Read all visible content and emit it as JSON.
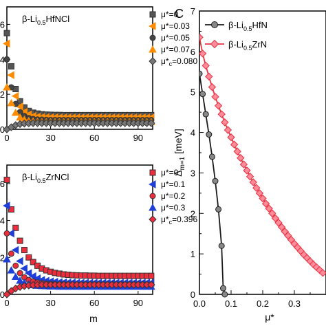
{
  "chart_data": [
    {
      "type": "scatter",
      "panel": "top-left",
      "title": "β-Li0.5HfNCl",
      "xlabel": "",
      "ylabel": "",
      "xlim": [
        0,
        100
      ],
      "ylim": [
        0,
        7
      ],
      "xticks": [
        0,
        30,
        60,
        90
      ],
      "yticks": [
        0,
        2,
        4,
        6
      ],
      "ytick_labels": [
        "0",
        "2",
        "4",
        "6"
      ],
      "series": [
        {
          "name": "μ*=0",
          "marker": "square",
          "color": "#555555",
          "x": [
            0,
            3,
            6,
            9,
            12,
            15,
            18,
            21,
            24,
            27,
            30,
            33,
            36,
            39,
            42,
            45,
            48,
            51,
            54,
            57,
            60,
            63,
            66,
            69,
            72,
            75,
            78,
            81,
            84,
            87,
            90,
            93,
            96,
            99
          ],
          "y": [
            5.5,
            3.6,
            2.3,
            1.6,
            1.25,
            1.05,
            0.95,
            0.9,
            0.86,
            0.84,
            0.83,
            0.82,
            0.82,
            0.81,
            0.81,
            0.81,
            0.81,
            0.81,
            0.81,
            0.81,
            0.81,
            0.81,
            0.81,
            0.81,
            0.81,
            0.81,
            0.81,
            0.81,
            0.81,
            0.81,
            0.81,
            0.81,
            0.81,
            0.81
          ]
        },
        {
          "name": "μ*=0.03",
          "marker": "triangle-left",
          "color": "#ff8c00",
          "x": [
            0,
            3,
            6,
            9,
            12,
            15,
            18,
            21,
            24,
            27,
            30,
            33,
            36,
            39,
            42,
            45,
            48,
            51,
            54,
            57,
            60,
            63,
            66,
            69,
            72,
            75,
            78,
            81,
            84,
            87,
            90,
            93,
            96,
            99
          ],
          "y": [
            4.9,
            3.1,
            1.9,
            1.3,
            1.0,
            0.85,
            0.76,
            0.72,
            0.7,
            0.69,
            0.68,
            0.68,
            0.67,
            0.67,
            0.67,
            0.67,
            0.67,
            0.67,
            0.67,
            0.67,
            0.67,
            0.67,
            0.67,
            0.67,
            0.67,
            0.67,
            0.67,
            0.67,
            0.67,
            0.67,
            0.67,
            0.67,
            0.67,
            0.67
          ]
        },
        {
          "name": "μ*=0.05",
          "marker": "circle",
          "color": "#444444",
          "x": [
            0,
            3,
            6,
            9,
            12,
            15,
            18,
            21,
            24,
            27,
            30,
            33,
            36,
            39,
            42,
            45,
            48,
            51,
            54,
            57,
            60,
            63,
            66,
            69,
            72,
            75,
            78,
            81,
            84,
            87,
            90,
            93,
            96,
            99
          ],
          "y": [
            4.0,
            2.4,
            1.45,
            0.98,
            0.76,
            0.64,
            0.59,
            0.56,
            0.55,
            0.54,
            0.53,
            0.53,
            0.53,
            0.53,
            0.53,
            0.53,
            0.53,
            0.53,
            0.53,
            0.53,
            0.53,
            0.53,
            0.53,
            0.53,
            0.53,
            0.53,
            0.53,
            0.53,
            0.53,
            0.53,
            0.53,
            0.53,
            0.53,
            0.53
          ]
        },
        {
          "name": "μ*=0.07",
          "marker": "triangle-up",
          "color": "#ff8c00",
          "x": [
            0,
            3,
            6,
            9,
            12,
            15,
            18,
            21,
            24,
            27,
            30,
            33,
            36,
            39,
            42,
            45,
            48,
            51,
            54,
            57,
            60,
            63,
            66,
            69,
            72,
            75,
            78,
            81,
            84,
            87,
            90,
            93,
            96,
            99
          ],
          "y": [
            2.4,
            1.5,
            0.95,
            0.68,
            0.55,
            0.48,
            0.45,
            0.43,
            0.42,
            0.42,
            0.42,
            0.42,
            0.42,
            0.42,
            0.42,
            0.42,
            0.42,
            0.42,
            0.42,
            0.42,
            0.42,
            0.42,
            0.42,
            0.42,
            0.42,
            0.42,
            0.42,
            0.42,
            0.42,
            0.42,
            0.42,
            0.42,
            0.42,
            0.42
          ]
        },
        {
          "name": "μ*c=0.080",
          "marker": "diamond",
          "color": "#777777",
          "x": [
            0,
            3,
            6,
            9,
            12,
            15,
            18,
            21,
            24,
            27,
            30,
            33,
            36,
            39,
            42,
            45,
            48,
            51,
            54,
            57,
            60,
            63,
            66,
            69,
            72,
            75,
            78,
            81,
            84,
            87,
            90,
            93,
            96,
            99
          ],
          "y": [
            0.0,
            0.12,
            0.24,
            0.3,
            0.33,
            0.34,
            0.35,
            0.35,
            0.35,
            0.35,
            0.35,
            0.35,
            0.35,
            0.35,
            0.35,
            0.35,
            0.35,
            0.35,
            0.35,
            0.35,
            0.35,
            0.35,
            0.35,
            0.35,
            0.35,
            0.35,
            0.35,
            0.35,
            0.35,
            0.35,
            0.35,
            0.35,
            0.35,
            0.35
          ]
        }
      ],
      "legend": "right"
    },
    {
      "type": "scatter",
      "panel": "bottom-left",
      "title": "β-Li0.5ZrNCl",
      "xlabel": "m",
      "ylabel": "",
      "xlim": [
        0,
        100
      ],
      "ylim": [
        0,
        7
      ],
      "xticks": [
        0,
        30,
        60,
        90
      ],
      "yticks": [
        0,
        2,
        4,
        6
      ],
      "ytick_labels": [
        "0",
        "2",
        "4",
        "6"
      ],
      "series": [
        {
          "name": "μ*=0",
          "marker": "square",
          "color": "#ee2c3c",
          "x": [
            0,
            3,
            6,
            9,
            12,
            15,
            18,
            21,
            24,
            27,
            30,
            33,
            36,
            39,
            42,
            45,
            48,
            51,
            54,
            57,
            60,
            63,
            66,
            69,
            72,
            75,
            78,
            81,
            84,
            87,
            90,
            93,
            96,
            99
          ],
          "y": [
            6.2,
            4.6,
            3.6,
            2.9,
            2.4,
            2.0,
            1.75,
            1.55,
            1.4,
            1.3,
            1.22,
            1.16,
            1.12,
            1.08,
            1.06,
            1.04,
            1.03,
            1.02,
            1.02,
            1.01,
            1.01,
            1.0,
            1.0,
            1.0,
            1.0,
            1.0,
            1.0,
            1.0,
            1.0,
            1.0,
            1.0,
            1.0,
            1.0,
            1.0
          ]
        },
        {
          "name": "μ*=0.1",
          "marker": "triangle-left",
          "color": "#1f3fd8",
          "x": [
            0,
            3,
            6,
            9,
            12,
            15,
            18,
            21,
            24,
            27,
            30,
            33,
            36,
            39,
            42,
            45,
            48,
            51,
            54,
            57,
            60,
            63,
            66,
            69,
            72,
            75,
            78,
            81,
            84,
            87,
            90,
            93,
            96,
            99
          ],
          "y": [
            4.8,
            3.3,
            2.4,
            1.8,
            1.4,
            1.15,
            0.98,
            0.86,
            0.78,
            0.73,
            0.7,
            0.68,
            0.66,
            0.65,
            0.64,
            0.64,
            0.63,
            0.63,
            0.63,
            0.63,
            0.63,
            0.63,
            0.63,
            0.63,
            0.63,
            0.63,
            0.63,
            0.63,
            0.63,
            0.63,
            0.63,
            0.63,
            0.63,
            0.63
          ]
        },
        {
          "name": "μ*=0.2",
          "marker": "circle",
          "color": "#ee2c3c",
          "x": [
            0,
            3,
            6,
            9,
            12,
            15,
            18,
            21,
            24,
            27,
            30,
            33,
            36,
            39,
            42,
            45,
            48,
            51,
            54,
            57,
            60,
            63,
            66,
            69,
            72,
            75,
            78,
            81,
            84,
            87,
            90,
            93,
            96,
            99
          ],
          "y": [
            3.3,
            2.2,
            1.55,
            1.15,
            0.92,
            0.78,
            0.7,
            0.64,
            0.6,
            0.58,
            0.56,
            0.55,
            0.54,
            0.54,
            0.53,
            0.53,
            0.53,
            0.53,
            0.53,
            0.53,
            0.53,
            0.53,
            0.53,
            0.53,
            0.53,
            0.53,
            0.53,
            0.53,
            0.53,
            0.53,
            0.53,
            0.53,
            0.53,
            0.53
          ]
        },
        {
          "name": "μ*=0.3",
          "marker": "triangle-up",
          "color": "#1f3fd8",
          "x": [
            0,
            3,
            6,
            9,
            12,
            15,
            18,
            21,
            24,
            27,
            30,
            33,
            36,
            39,
            42,
            45,
            48,
            51,
            54,
            57,
            60,
            63,
            66,
            69,
            72,
            75,
            78,
            81,
            84,
            87,
            90,
            93,
            96,
            99
          ],
          "y": [
            1.9,
            1.3,
            0.95,
            0.74,
            0.62,
            0.55,
            0.5,
            0.47,
            0.45,
            0.44,
            0.43,
            0.43,
            0.42,
            0.42,
            0.42,
            0.42,
            0.42,
            0.42,
            0.42,
            0.42,
            0.42,
            0.42,
            0.42,
            0.42,
            0.42,
            0.42,
            0.42,
            0.42,
            0.42,
            0.42,
            0.42,
            0.42,
            0.42,
            0.42
          ]
        },
        {
          "name": "μ*c=0.396",
          "marker": "diamond",
          "color": "#ee2c3c",
          "x": [
            0,
            3,
            6,
            9,
            12,
            15,
            18,
            21,
            24,
            27,
            30,
            33,
            36,
            39,
            42,
            45,
            48,
            51,
            54,
            57,
            60,
            63,
            66,
            69,
            72,
            75,
            78,
            81,
            84,
            87,
            90,
            93,
            96,
            99
          ],
          "y": [
            0.0,
            0.18,
            0.32,
            0.4,
            0.45,
            0.48,
            0.5,
            0.51,
            0.52,
            0.52,
            0.52,
            0.52,
            0.52,
            0.52,
            0.52,
            0.52,
            0.52,
            0.52,
            0.52,
            0.52,
            0.52,
            0.52,
            0.52,
            0.52,
            0.52,
            0.52,
            0.52,
            0.52,
            0.52,
            0.52,
            0.52,
            0.52,
            0.52,
            0.52
          ]
        }
      ],
      "legend": "right"
    },
    {
      "type": "line",
      "panel": "right",
      "label": "C",
      "xlabel": "μ*",
      "ylabel": "Δm=1 [meV]",
      "xlim": [
        0,
        0.4
      ],
      "ylim": [
        0,
        7
      ],
      "xticks": [
        0.0,
        0.1,
        0.2,
        0.3
      ],
      "xtick_labels": [
        "0.0",
        "0.1",
        "0.2",
        "0.3"
      ],
      "yticks": [
        0,
        1,
        2,
        3,
        4,
        5,
        6,
        7
      ],
      "series": [
        {
          "name": "β-Li0.5HfN",
          "marker": "circle",
          "color": "#1a1a1a",
          "marker_fill": "#888888",
          "x": [
            0.0,
            0.01,
            0.02,
            0.03,
            0.04,
            0.05,
            0.06,
            0.07,
            0.075,
            0.08
          ],
          "y": [
            5.45,
            4.95,
            4.45,
            3.95,
            3.4,
            2.8,
            2.1,
            1.2,
            0.15,
            0.0
          ]
        },
        {
          "name": "β-Li0.5ZrN",
          "marker": "diamond",
          "color": "#e8303e",
          "marker_fill": "#ff8a9a",
          "x": [
            0.0,
            0.01,
            0.02,
            0.03,
            0.04,
            0.05,
            0.06,
            0.07,
            0.08,
            0.09,
            0.1,
            0.11,
            0.12,
            0.13,
            0.14,
            0.15,
            0.16,
            0.17,
            0.18,
            0.19,
            0.2,
            0.21,
            0.22,
            0.23,
            0.24,
            0.25,
            0.26,
            0.27,
            0.28,
            0.29,
            0.3,
            0.31,
            0.32,
            0.33,
            0.34,
            0.35,
            0.36,
            0.37,
            0.38,
            0.39
          ],
          "y": [
            6.35,
            5.95,
            5.65,
            5.38,
            5.12,
            4.88,
            4.66,
            4.45,
            4.25,
            4.06,
            3.88,
            3.7,
            3.53,
            3.37,
            3.21,
            3.06,
            2.91,
            2.77,
            2.63,
            2.5,
            2.37,
            2.24,
            2.12,
            2.0,
            1.88,
            1.77,
            1.66,
            1.55,
            1.45,
            1.35,
            1.25,
            1.16,
            1.07,
            0.98,
            0.9,
            0.82,
            0.74,
            0.67,
            0.6,
            0.53
          ]
        }
      ],
      "legend": "top-right"
    }
  ]
}
